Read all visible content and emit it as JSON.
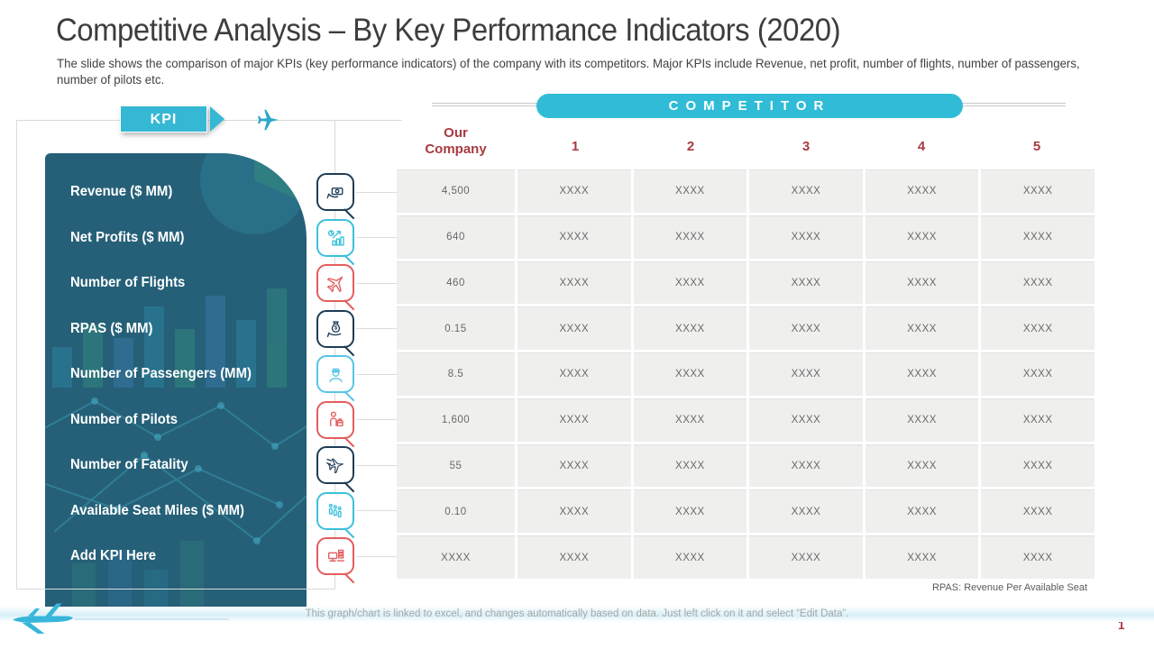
{
  "slide": {
    "title": "Competitive Analysis – By Key Performance Indicators (2020)",
    "subtitle": "The slide shows the comparison of major KPIs (key performance indicators) of the company with its competitors. Major KPIs include Revenue,  net profit, number of flights, number of passengers, number of pilots etc.",
    "page_number": "1",
    "bottom_note": "This graph/chart is linked to excel, and changes automatically based on data. Just left click on it and select “Edit Data”.",
    "table_note": "RPAS: Revenue Per Available Seat"
  },
  "kpi_panel": {
    "badge_label": "KPI",
    "items": [
      {
        "label": "Revenue ($ MM)",
        "icon": "money-hand-icon",
        "color": "#1f3c55"
      },
      {
        "label": "Net Profits ($ MM)",
        "icon": "profit-growth-icon",
        "color": "#3cc0db"
      },
      {
        "label": "Number of Flights",
        "icon": "airplane-icon",
        "color": "#e35d5d"
      },
      {
        "label": "RPAS ($ MM)",
        "icon": "money-bag-icon",
        "color": "#1f3c55"
      },
      {
        "label": "Number of Passengers (MM)",
        "icon": "pilot-icon",
        "color": "#58c5e6"
      },
      {
        "label": "Number of Pilots",
        "icon": "person-luggage-icon",
        "color": "#e35d5d"
      },
      {
        "label": "Number of Fatality",
        "icon": "crashed-plane-icon",
        "color": "#1f3c55"
      },
      {
        "label": "Available Seat Miles ($ MM)",
        "icon": "seats-icon",
        "color": "#3cc0db"
      },
      {
        "label": "Add KPI Here",
        "icon": "desk-money-icon",
        "color": "#e35d5d"
      }
    ]
  },
  "table": {
    "group_header": "COMPETITOR",
    "columns": [
      "Our Company",
      "1",
      "2",
      "3",
      "4",
      "5"
    ],
    "rows": [
      [
        "4,500",
        "XXXX",
        "XXXX",
        "XXXX",
        "XXXX",
        "XXXX"
      ],
      [
        "640",
        "XXXX",
        "XXXX",
        "XXXX",
        "XXXX",
        "XXXX"
      ],
      [
        "460",
        "XXXX",
        "XXXX",
        "XXXX",
        "XXXX",
        "XXXX"
      ],
      [
        "0.15",
        "XXXX",
        "XXXX",
        "XXXX",
        "XXXX",
        "XXXX"
      ],
      [
        "8.5",
        "XXXX",
        "XXXX",
        "XXXX",
        "XXXX",
        "XXXX"
      ],
      [
        "1,600",
        "XXXX",
        "XXXX",
        "XXXX",
        "XXXX",
        "XXXX"
      ],
      [
        "55",
        "XXXX",
        "XXXX",
        "XXXX",
        "XXXX",
        "XXXX"
      ],
      [
        "0.10",
        "XXXX",
        "XXXX",
        "XXXX",
        "XXXX",
        "XXXX"
      ],
      [
        "XXXX",
        "XXXX",
        "XXXX",
        "XXXX",
        "XXXX",
        "XXXX"
      ]
    ]
  },
  "colors": {
    "accent_cyan": "#30bcd6",
    "panel_teal": "#256078",
    "header_red": "#a83a40",
    "frame_gray": "#dadada"
  }
}
